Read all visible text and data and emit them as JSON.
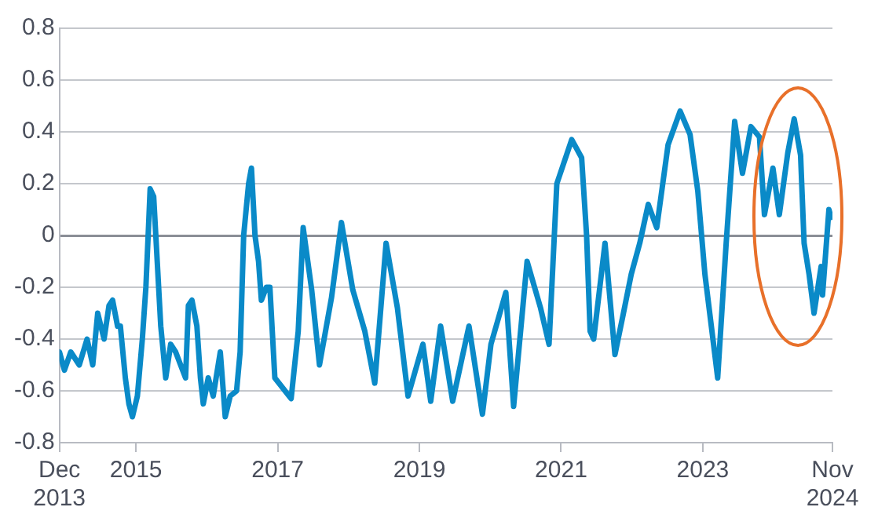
{
  "chart_data": {
    "type": "line",
    "x": [
      2013.92,
      2013.99,
      2014.08,
      2014.2,
      2014.31,
      2014.39,
      2014.46,
      2014.55,
      2014.62,
      2014.67,
      2014.74,
      2014.78,
      2014.85,
      2014.9,
      2014.95,
      2015.02,
      2015.09,
      2015.14,
      2015.18,
      2015.2,
      2015.25,
      2015.3,
      2015.35,
      2015.42,
      2015.49,
      2015.56,
      2015.63,
      2015.7,
      2015.74,
      2015.79,
      2015.86,
      2015.91,
      2015.95,
      2016.02,
      2016.09,
      2016.19,
      2016.26,
      2016.33,
      2016.42,
      2016.47,
      2016.52,
      2016.59,
      2016.63,
      2016.68,
      2016.73,
      2016.77,
      2016.84,
      2016.89,
      2016.96,
      2017.19,
      2017.29,
      2017.36,
      2017.48,
      2017.59,
      2017.76,
      2017.9,
      2018.06,
      2018.23,
      2018.37,
      2018.53,
      2018.69,
      2018.84,
      2019.05,
      2019.16,
      2019.3,
      2019.47,
      2019.7,
      2019.89,
      2020.01,
      2020.22,
      2020.33,
      2020.52,
      2020.71,
      2020.83,
      2020.94,
      2021.15,
      2021.29,
      2021.36,
      2021.41,
      2021.46,
      2021.62,
      2021.76,
      2021.88,
      2021.99,
      2022.11,
      2022.23,
      2022.35,
      2022.51,
      2022.68,
      2022.82,
      2022.93,
      2023.03,
      2023.17,
      2023.21,
      2023.33,
      2023.45,
      2023.56,
      2023.68,
      2023.8,
      2023.87,
      2023.99,
      2024.08,
      2024.2,
      2024.29,
      2024.38,
      2024.43,
      2024.5,
      2024.57,
      2024.67,
      2024.69,
      2024.78,
      2024.81
    ],
    "series": [
      {
        "color": "#0a8ac8",
        "values": [
          -0.45,
          -0.52,
          -0.45,
          -0.5,
          -0.4,
          -0.5,
          -0.3,
          -0.4,
          -0.27,
          -0.25,
          -0.35,
          -0.35,
          -0.55,
          -0.65,
          -0.7,
          -0.62,
          -0.4,
          -0.2,
          0.05,
          0.18,
          0.15,
          -0.1,
          -0.35,
          -0.55,
          -0.42,
          -0.45,
          -0.5,
          -0.55,
          -0.27,
          -0.25,
          -0.35,
          -0.55,
          -0.65,
          -0.55,
          -0.62,
          -0.45,
          -0.7,
          -0.62,
          -0.6,
          -0.45,
          0,
          0.2,
          0.26,
          0,
          -0.1,
          -0.25,
          -0.2,
          -0.2,
          -0.55,
          -0.63,
          -0.37,
          0.03,
          -0.21,
          -0.5,
          -0.24,
          0.05,
          -0.21,
          -0.37,
          -0.57,
          -0.03,
          -0.28,
          -0.62,
          -0.42,
          -0.64,
          -0.35,
          -0.64,
          -0.35,
          -0.69,
          -0.42,
          -0.22,
          -0.66,
          -0.1,
          -0.28,
          -0.42,
          0.2,
          0.37,
          0.3,
          0,
          -0.37,
          -0.4,
          -0.03,
          -0.46,
          -0.3,
          -0.15,
          -0.03,
          0.12,
          0.03,
          0.35,
          0.48,
          0.39,
          0.17,
          -0.15,
          -0.46,
          -0.55,
          -0.03,
          0.44,
          0.24,
          0.42,
          0.38,
          0.08,
          0.26,
          0.08,
          0.32,
          0.45,
          0.31,
          -0.03,
          -0.15,
          -0.3,
          -0.12,
          -0.23,
          0.1,
          0.07
        ]
      }
    ],
    "xlim": [
      2013.92,
      2024.83
    ],
    "xticks": [
      {
        "value": 2013.92,
        "label": "Dec 2013"
      },
      {
        "value": 2015,
        "label": "2015"
      },
      {
        "value": 2017,
        "label": "2017"
      },
      {
        "value": 2019,
        "label": "2019"
      },
      {
        "value": 2021,
        "label": "2021"
      },
      {
        "value": 2023,
        "label": "2023"
      },
      {
        "value": 2024.83,
        "label": "Nov 2024"
      }
    ],
    "ylim": [
      -0.8,
      0.8
    ],
    "yticks": [
      -0.8,
      -0.6,
      -0.4,
      -0.2,
      0,
      0.2,
      0.4,
      0.6,
      0.8
    ],
    "grid": "y",
    "legend": false,
    "marker": "none",
    "line_style": "solid"
  }
}
